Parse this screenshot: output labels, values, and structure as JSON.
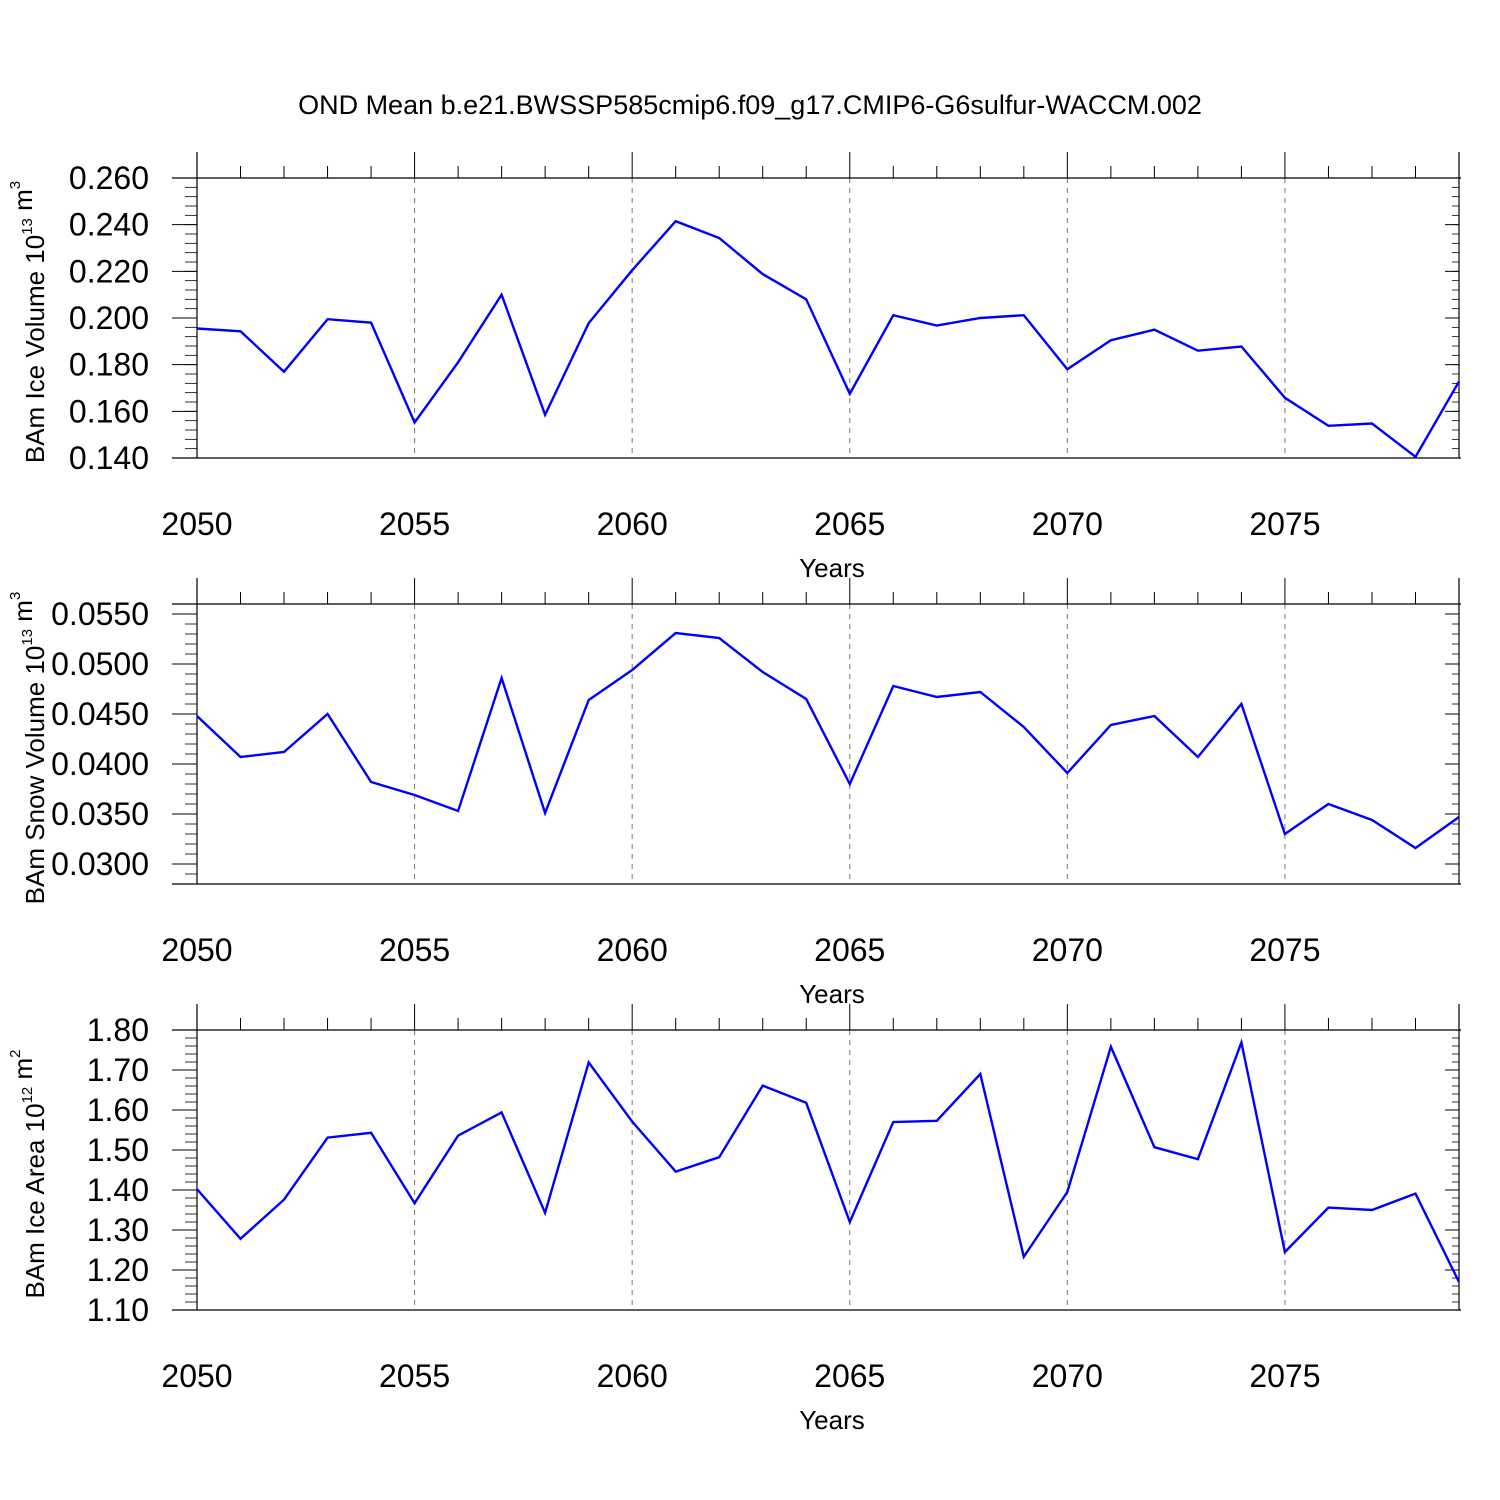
{
  "title": "OND Mean b.e21.BWSSP585cmip6.f09_g17.CMIP6-G6sulfur-WACCM.002",
  "colors": {
    "line": "#0000ff",
    "axis": "#000000",
    "grid": "#777777"
  },
  "chart_data": [
    {
      "type": "line",
      "ylabel": {
        "text": "BAm Ice Volume 10",
        "exp": "13",
        "unit": " m",
        "unit_exp": "3"
      },
      "xlabel": "Years",
      "xlim": [
        2050,
        2079
      ],
      "ylim": [
        0.14,
        0.26
      ],
      "xticks": [
        2050,
        2055,
        2060,
        2065,
        2070,
        2075
      ],
      "xtick_labels": [
        "2050",
        "2055",
        "2060",
        "2065",
        "2070",
        "2075"
      ],
      "yticks": [
        0.14,
        0.16,
        0.18,
        0.2,
        0.22,
        0.24,
        0.26
      ],
      "ytick_labels": [
        "0.140",
        "0.160",
        "0.180",
        "0.200",
        "0.220",
        "0.240",
        "0.260"
      ],
      "x": [
        2050,
        2051,
        2052,
        2053,
        2054,
        2055,
        2056,
        2057,
        2058,
        2059,
        2060,
        2061,
        2062,
        2063,
        2064,
        2065,
        2066,
        2067,
        2068,
        2069,
        2070,
        2071,
        2072,
        2073,
        2074,
        2075,
        2076,
        2077,
        2078,
        2079
      ],
      "values": [
        0.1955,
        0.1943,
        0.177,
        0.1995,
        0.198,
        0.1552,
        0.181,
        0.21,
        0.1585,
        0.1978,
        0.2205,
        0.2415,
        0.2343,
        0.2188,
        0.208,
        0.1675,
        0.2012,
        0.1968,
        0.2,
        0.2012,
        0.178,
        0.1905,
        0.195,
        0.186,
        0.1878,
        0.1658,
        0.1538,
        0.1548,
        0.1405,
        0.1728
      ]
    },
    {
      "type": "line",
      "ylabel": {
        "text": "BAm Snow Volume 10",
        "exp": "13",
        "unit": " m",
        "unit_exp": "3"
      },
      "xlabel": "Years",
      "xlim": [
        2050,
        2079
      ],
      "ylim": [
        0.028,
        0.056
      ],
      "xticks": [
        2050,
        2055,
        2060,
        2065,
        2070,
        2075
      ],
      "xtick_labels": [
        "2050",
        "2055",
        "2060",
        "2065",
        "2070",
        "2075"
      ],
      "yticks": [
        0.03,
        0.035,
        0.04,
        0.045,
        0.05,
        0.055
      ],
      "ytick_labels": [
        "0.0300",
        "0.0350",
        "0.0400",
        "0.0450",
        "0.0500",
        "0.0550"
      ],
      "x": [
        2050,
        2051,
        2052,
        2053,
        2054,
        2055,
        2056,
        2057,
        2058,
        2059,
        2060,
        2061,
        2062,
        2063,
        2064,
        2065,
        2066,
        2067,
        2068,
        2069,
        2070,
        2071,
        2072,
        2073,
        2074,
        2075,
        2076,
        2077,
        2078,
        2079
      ],
      "values": [
        0.0448,
        0.0407,
        0.0412,
        0.045,
        0.0382,
        0.0369,
        0.0353,
        0.0486,
        0.0351,
        0.0464,
        0.0494,
        0.0531,
        0.0526,
        0.0492,
        0.0465,
        0.038,
        0.0478,
        0.0467,
        0.0472,
        0.0437,
        0.0391,
        0.0439,
        0.0448,
        0.0407,
        0.046,
        0.033,
        0.036,
        0.0344,
        0.0316,
        0.0347
      ]
    },
    {
      "type": "line",
      "ylabel": {
        "text": "BAm Ice Area 10",
        "exp": "12",
        "unit": " m",
        "unit_exp": "2"
      },
      "xlabel": "Years",
      "xlim": [
        2050,
        2079
      ],
      "ylim": [
        1.1,
        1.8
      ],
      "xticks": [
        2050,
        2055,
        2060,
        2065,
        2070,
        2075
      ],
      "xtick_labels": [
        "2050",
        "2055",
        "2060",
        "2065",
        "2070",
        "2075"
      ],
      "yticks": [
        1.1,
        1.2,
        1.3,
        1.4,
        1.5,
        1.6,
        1.7,
        1.8
      ],
      "ytick_labels": [
        "1.10",
        "1.20",
        "1.30",
        "1.40",
        "1.50",
        "1.60",
        "1.70",
        "1.80"
      ],
      "x": [
        2050,
        2051,
        2052,
        2053,
        2054,
        2055,
        2056,
        2057,
        2058,
        2059,
        2060,
        2061,
        2062,
        2063,
        2064,
        2065,
        2066,
        2067,
        2068,
        2069,
        2070,
        2071,
        2072,
        2073,
        2074,
        2075,
        2076,
        2077,
        2078,
        2079
      ],
      "values": [
        1.402,
        1.278,
        1.376,
        1.531,
        1.543,
        1.367,
        1.536,
        1.594,
        1.343,
        1.719,
        1.571,
        1.446,
        1.482,
        1.661,
        1.618,
        1.32,
        1.57,
        1.573,
        1.69,
        1.233,
        1.395,
        1.758,
        1.507,
        1.477,
        1.769,
        1.245,
        1.356,
        1.35,
        1.391,
        1.17
      ]
    }
  ]
}
